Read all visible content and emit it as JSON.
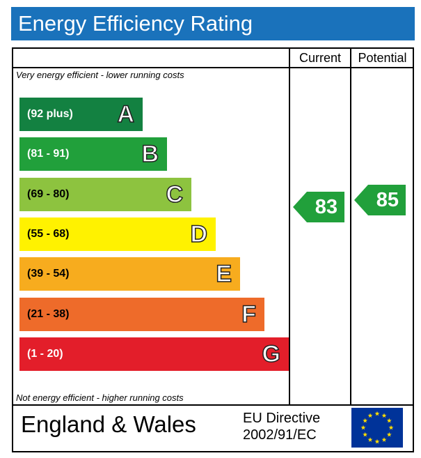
{
  "header": {
    "title": "Energy Efficiency Rating"
  },
  "columns": {
    "current": "Current",
    "potential": "Potential"
  },
  "captions": {
    "top": "Very energy efficient - lower running costs",
    "bottom": "Not energy efficient - higher running costs"
  },
  "chart_data": {
    "type": "bar",
    "title": "Energy Efficiency Rating",
    "bands": [
      {
        "range": "(92 plus)",
        "letter": "A",
        "color": "#138141"
      },
      {
        "range": "(81 - 91)",
        "letter": "B",
        "color": "#21a03b"
      },
      {
        "range": "(69 - 80)",
        "letter": "C",
        "color": "#8dc33f"
      },
      {
        "range": "(55 - 68)",
        "letter": "D",
        "color": "#fff200"
      },
      {
        "range": "(39 - 54)",
        "letter": "E",
        "color": "#f7ac1e"
      },
      {
        "range": "(21 - 38)",
        "letter": "F",
        "color": "#ee6b2a"
      },
      {
        "range": "(1 - 20)",
        "letter": "G",
        "color": "#e31e2a"
      }
    ],
    "current": {
      "value": 83,
      "band": "B",
      "color": "#21a03b"
    },
    "potential": {
      "value": 85,
      "band": "B",
      "color": "#21a03b"
    }
  },
  "footer": {
    "country": "England & Wales",
    "directive_line1": "EU Directive",
    "directive_line2": "2002/91/EC"
  },
  "eu_flag_icon": "eu-flag-icon"
}
